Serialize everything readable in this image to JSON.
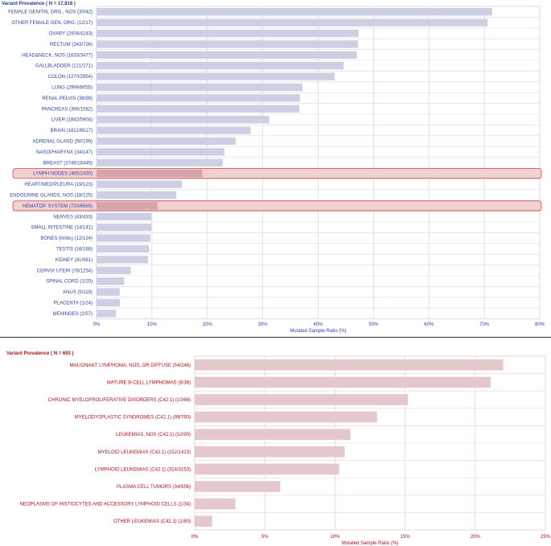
{
  "chart_data": [
    {
      "type": "bar",
      "orientation": "horizontal",
      "title": "Variant Prevalence ( N = 17,818 )",
      "xlabel": "Mutated Sample Ratio (%)",
      "ylabel": "",
      "xlim": [
        0,
        80
      ],
      "xticks": [
        "0%",
        "10%",
        "20%",
        "30%",
        "40%",
        "50%",
        "60%",
        "70%",
        "80%"
      ],
      "grid": true,
      "bar_color": "#cdd0e3",
      "highlight_color": "#f2c9c9",
      "highlight_border": "#c9585a",
      "text_color": "#2a46a8",
      "categories": [
        "FEMALE GENITAL ORG., NOS (30/42)",
        "OTHER FEMALE GEN. ORG. (12/17)",
        "OVARY (2006/4243)",
        "RECTUM (343/726)",
        "HEAD&NECK, NOS (1633/3477)",
        "GALLBLADDER (121/271)",
        "COLON (1270/2954)",
        "LUNG (2999/8055)",
        "RENAL PELVIS (36/98)",
        "PANCREAS (396/1082)",
        "LIVER (1842/5904)",
        "BRAIN (1812/6517)",
        "ADRENAL GLAND (50/199)",
        "NASOPHARYNX (34/147)",
        "BREAST (3749/16445)",
        "LYMPH NODES (465/2430)",
        "HEART/MED/PLEURA (19/123)",
        "ENDOCRINE GLANDS, NOS (18/125)",
        "HEMATOP. SYSTEM (720/6565)",
        "NERVES (43/433)",
        "SMALL INTESTINE (14/141)",
        "BONES (limbs) (12/124)",
        "TESTIS (16/168)",
        "KIDNEY (91/981)",
        "CERVIX UTERI (78/1254)",
        "SPINAL CORD (1/20)",
        "ANUS (5/119)",
        "PLACENTA (1/24)",
        "MENINGES (2/57)"
      ],
      "values": [
        71.4,
        70.6,
        47.3,
        47.2,
        47.0,
        44.6,
        43.0,
        37.2,
        36.7,
        36.6,
        31.2,
        27.8,
        25.1,
        23.1,
        22.8,
        19.1,
        15.4,
        14.4,
        11.0,
        9.9,
        9.9,
        9.7,
        9.5,
        9.3,
        6.2,
        5.0,
        4.2,
        4.2,
        3.5
      ],
      "highlighted": [
        "LYMPH NODES (465/2430)",
        "HEMATOP. SYSTEM (720/6565)"
      ]
    },
    {
      "type": "bar",
      "orientation": "horizontal",
      "title": "Variant Prevalence ( N = 693 )",
      "xlabel": "Mutated Sample Ratio (%)",
      "ylabel": "",
      "xlim": [
        0,
        25
      ],
      "xticks": [
        "0%",
        "5%",
        "10%",
        "15%",
        "20%",
        "25%"
      ],
      "grid": true,
      "bar_color": "#e5c8cb",
      "text_color": "#b0121b",
      "categories": [
        "MALIGNANT LYMPHOMA, NOS, OR DIFFUSE (54/246)",
        "MATURE B-CELL LYMPHOMAS (8/38)",
        "CHRONIC MYELOPROLIFERATIVE DISORDERS (C42.1) (10/66)",
        "MYELODYSPLASTIC SYNDROMES (C42.1) (99/760)",
        "LEUKEMIAS, NOS (C42.1) (10/90)",
        "MYELOID LEUKEMIAS (C42.1) (152/1423)",
        "LYMPHOID LEUKEMIAS (C42.1) (324/3153)",
        "PLASMA CELL TUMORS (34/556)",
        "NEOPLASMS OF HISTIOCYTES AND ACCESSORY LYMPHOID CELLS (1/34)",
        "OTHER LEUKEMIAS (C42.1) (1/80)"
      ],
      "values": [
        22.0,
        21.1,
        15.2,
        13.0,
        11.1,
        10.7,
        10.3,
        6.1,
        2.9,
        1.25
      ]
    }
  ]
}
